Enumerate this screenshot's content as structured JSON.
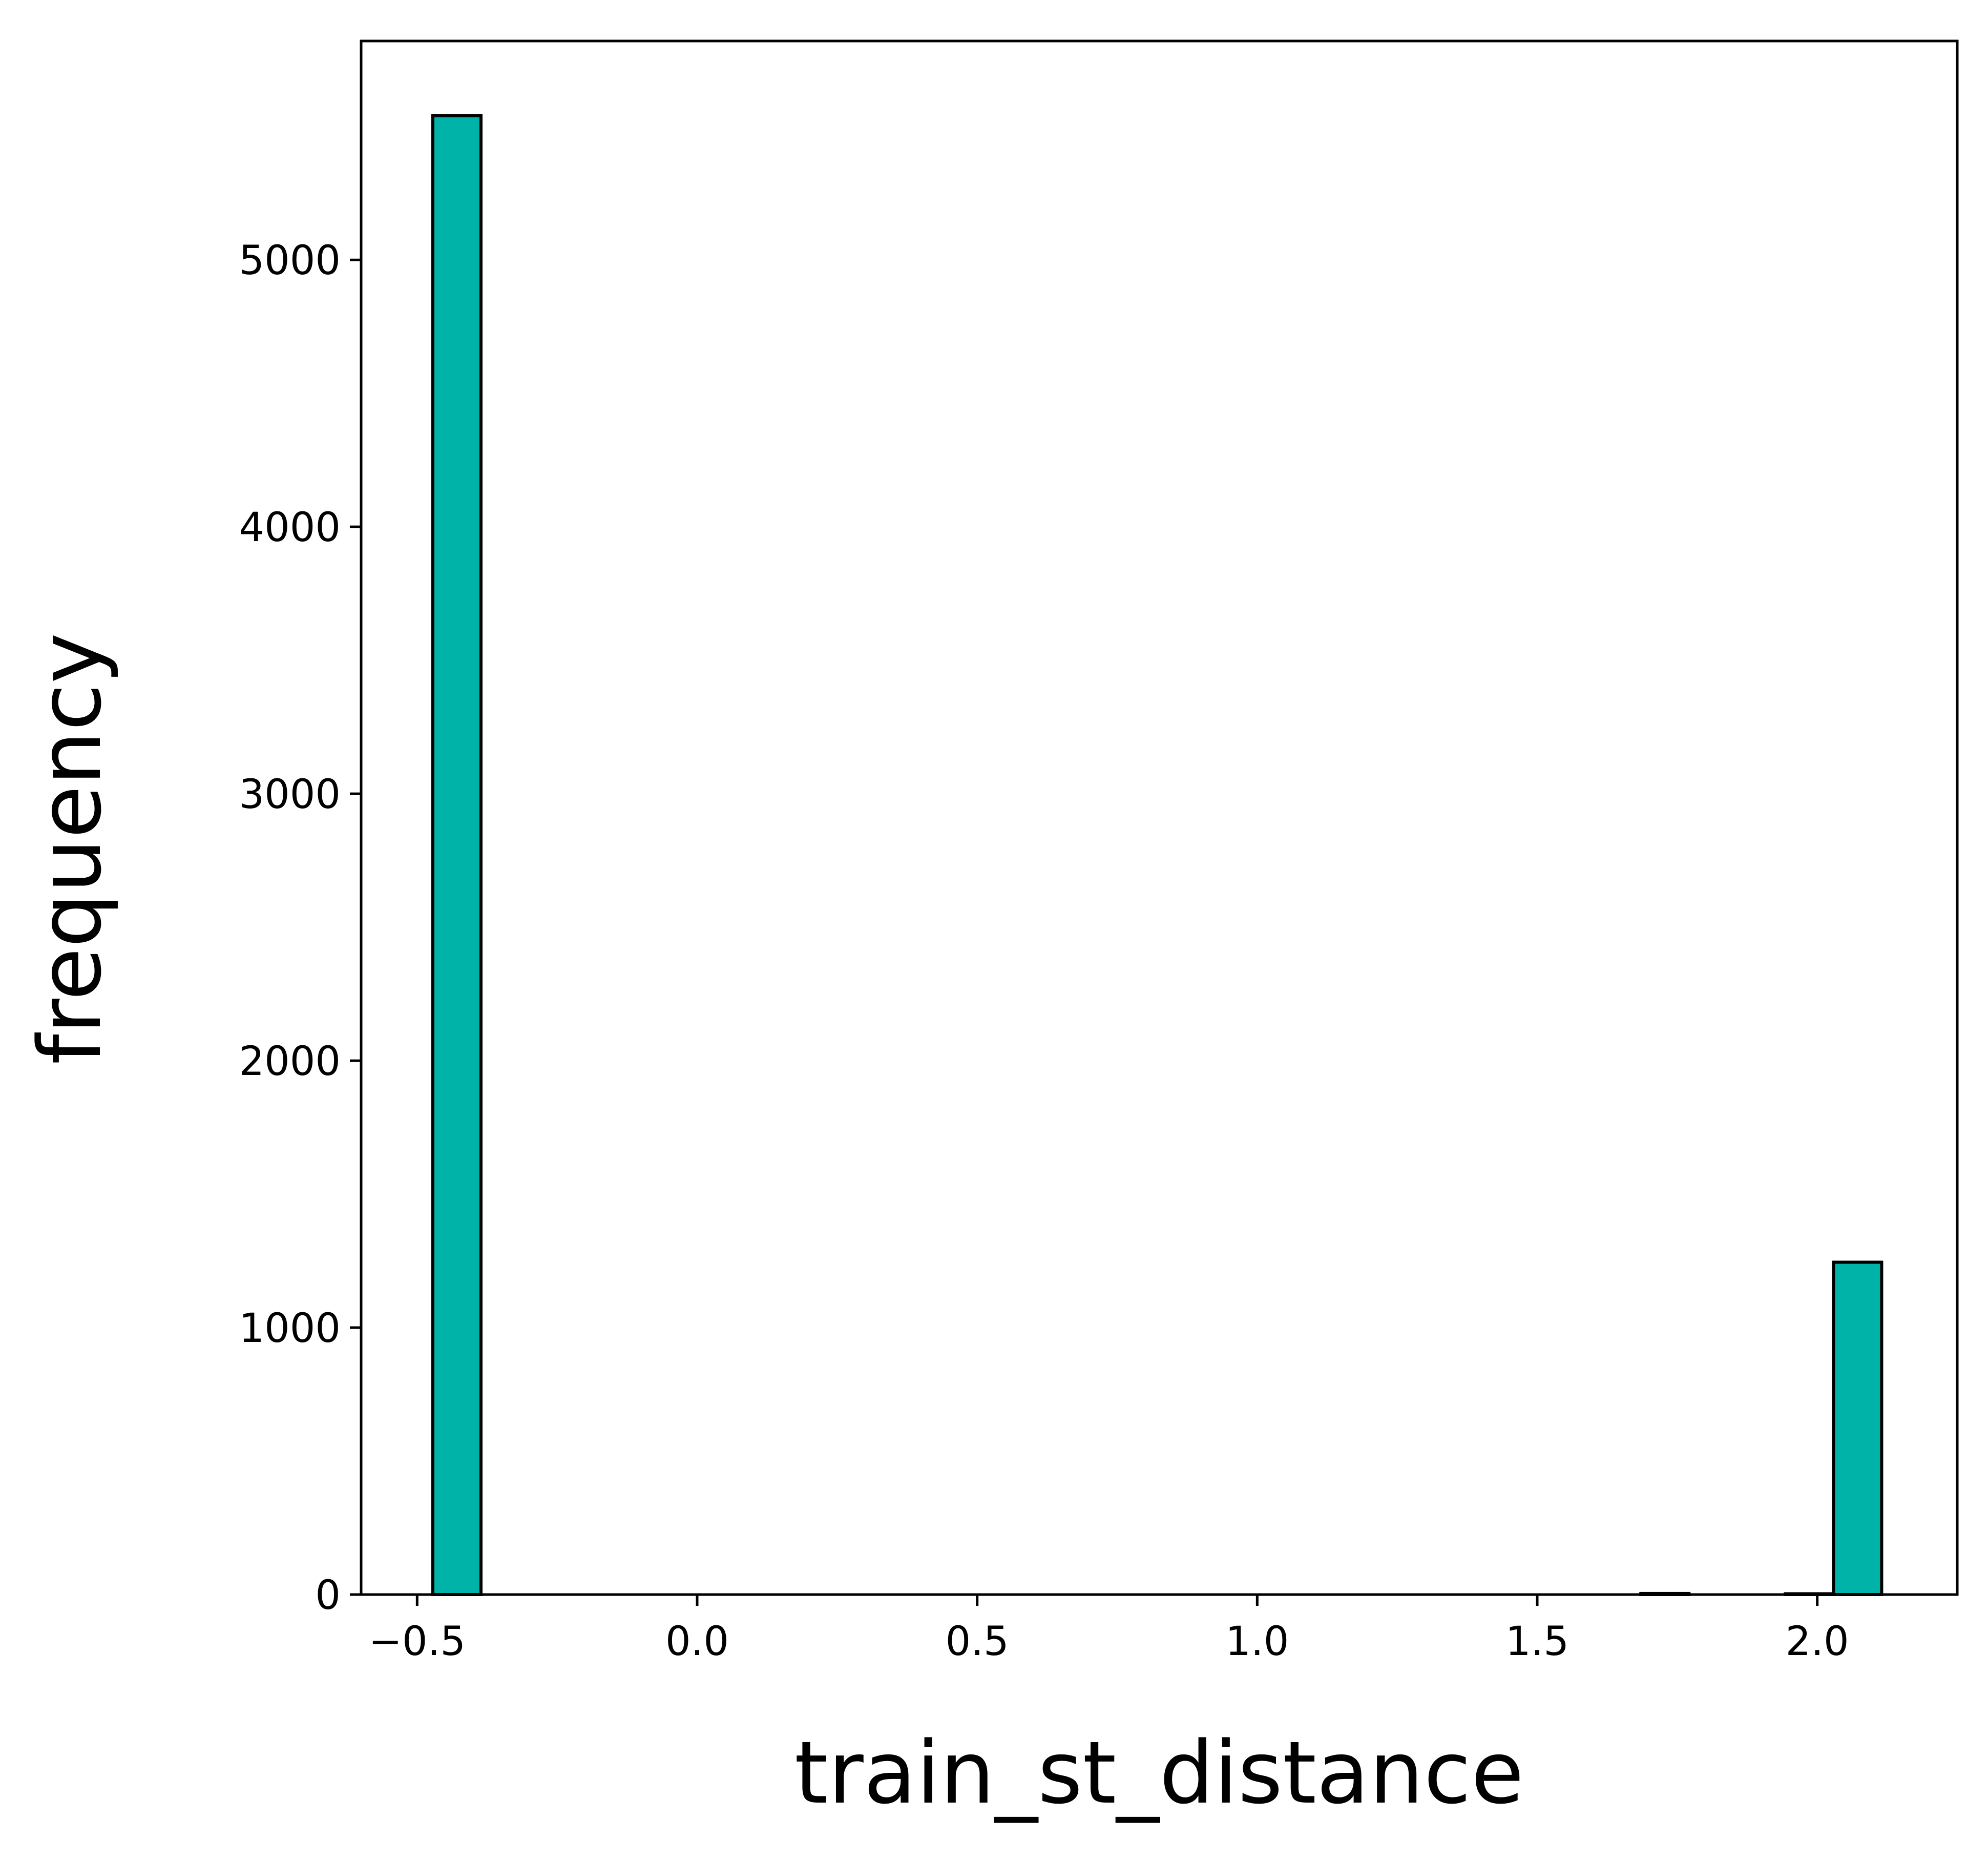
{
  "chart_data": {
    "type": "bar",
    "title": "",
    "xlabel": "train_st_distance",
    "ylabel": "frequency",
    "xlim": [
      -0.6,
      2.25
    ],
    "ylim": [
      0,
      5820
    ],
    "xticks": [
      -0.5,
      0.0,
      0.5,
      1.0,
      1.5,
      2.0
    ],
    "xtick_labels": [
      "−0.5",
      "0.0",
      "0.5",
      "1.0",
      "1.5",
      "2.0"
    ],
    "yticks": [
      0,
      1000,
      2000,
      3000,
      4000,
      5000
    ],
    "ytick_labels": [
      "0",
      "1000",
      "2000",
      "3000",
      "4000",
      "5000"
    ],
    "bin_width": 0.0861,
    "bins": [
      {
        "x0": -0.472,
        "x1": -0.386,
        "count": 5540
      },
      {
        "x0": 1.685,
        "x1": 1.771,
        "count": 4
      },
      {
        "x0": 1.943,
        "x1": 2.029,
        "count": 3
      },
      {
        "x0": 2.029,
        "x1": 2.115,
        "count": 1245
      }
    ],
    "bar_color": "#00b3a8",
    "edge_color": "#000000",
    "grid": false,
    "legend": "none"
  }
}
